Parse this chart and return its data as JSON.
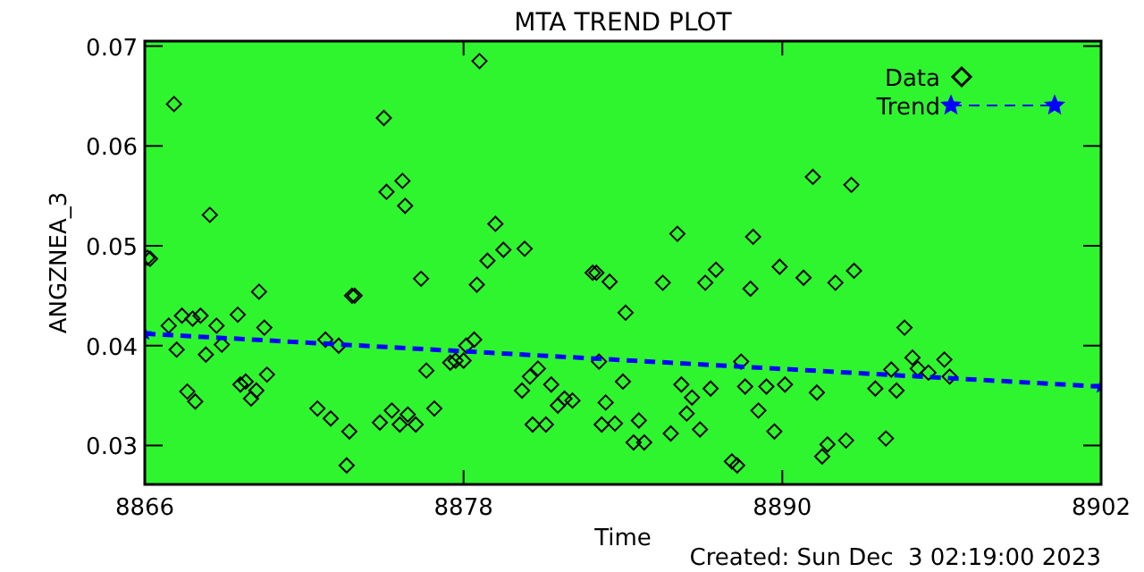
{
  "chart_data": {
    "type": "scatter",
    "title": "MTA TREND PLOT",
    "xlabel": "Time",
    "ylabel": "ANGZNEA_3",
    "annotations": [
      "Created: Sun Dec  3 02:19:00 2023"
    ],
    "xlim": [
      8866,
      8902
    ],
    "xticks": [
      8866,
      8878,
      8890,
      8902
    ],
    "ylim": [
      0.0261,
      0.0705
    ],
    "yticks": [
      0.03,
      0.04,
      0.05,
      0.06,
      0.07
    ],
    "grid": false,
    "legend": "top right",
    "series": [
      {
        "name": "Data",
        "marker": "diamond",
        "color": "#000000",
        "x": [
          8867.1,
          8875.0,
          8868.45,
          8875.1,
          8875.7,
          8875.8,
          8866.1,
          8866.2,
          8876.4,
          8878.5,
          8870.3,
          8873.8,
          8873.9,
          8866.9,
          8867.4,
          8867.8,
          8868.1,
          8868.7,
          8869.5,
          8870.5,
          8867.2,
          8868.3,
          8868.9,
          8872.8,
          8873.3,
          8878.4,
          8878.1,
          8877.7,
          8878.0,
          8877.5,
          8876.6,
          8870.6,
          8869.6,
          8869.8,
          8870.2,
          8870.0,
          8867.6,
          8867.9,
          8872.5,
          8873.0,
          8873.7,
          8873.6,
          8874.85,
          8875.3,
          8875.6,
          8875.9,
          8876.2,
          8876.9,
          8878.6,
          8879.2,
          8878.9,
          8879.5,
          8880.3,
          8882.86,
          8883.0,
          8883.5,
          8884.1,
          8886.05,
          8885.5,
          8887.1,
          8887.5,
          8888.9,
          8888.8,
          8889.9,
          8890.8,
          8883.1,
          8884.0,
          8880.8,
          8880.5,
          8881.3,
          8880.2,
          8881.8,
          8882.1,
          8881.55,
          8883.35,
          8880.6,
          8881.1,
          8883.2,
          8883.7,
          8884.6,
          8884.4,
          8884.8,
          8885.8,
          8886.2,
          8886.6,
          8886.4,
          8886.9,
          8887.3,
          8888.45,
          8888.6,
          8889.4,
          8890.1,
          8889.1,
          8889.7,
          8888.1,
          8888.3,
          8891.15,
          8892.6,
          8892.0,
          8892.7,
          8894.6,
          8894.9,
          8896.1,
          8895.1,
          8895.5,
          8896.3,
          8894.1,
          8893.5,
          8894.3,
          8891.3,
          8891.7,
          8891.5,
          8892.4,
          8893.9
        ],
        "values": [
          0.0642,
          0.0628,
          0.0531,
          0.0554,
          0.0565,
          0.054,
          0.0488,
          0.0487,
          0.0467,
          0.0461,
          0.0454,
          0.045,
          0.045,
          0.042,
          0.043,
          0.0427,
          0.043,
          0.042,
          0.0431,
          0.0418,
          0.0396,
          0.0391,
          0.0401,
          0.0406,
          0.04,
          0.0406,
          0.04,
          0.0385,
          0.0385,
          0.0383,
          0.0375,
          0.0371,
          0.0361,
          0.0364,
          0.0355,
          0.0347,
          0.0354,
          0.0344,
          0.0337,
          0.0327,
          0.0314,
          0.028,
          0.0323,
          0.0335,
          0.0321,
          0.0331,
          0.0321,
          0.0337,
          0.0685,
          0.0522,
          0.0485,
          0.0496,
          0.0497,
          0.0473,
          0.0473,
          0.0464,
          0.0433,
          0.0512,
          0.0463,
          0.0463,
          0.0476,
          0.0509,
          0.0457,
          0.0479,
          0.0468,
          0.0384,
          0.0364,
          0.0377,
          0.0369,
          0.0361,
          0.0355,
          0.0347,
          0.0345,
          0.034,
          0.0343,
          0.0321,
          0.0321,
          0.0321,
          0.0322,
          0.0325,
          0.0303,
          0.0303,
          0.0312,
          0.0361,
          0.0348,
          0.0332,
          0.0316,
          0.0357,
          0.0384,
          0.0359,
          0.0359,
          0.0361,
          0.0335,
          0.0314,
          0.0284,
          0.028,
          0.0569,
          0.0561,
          0.0463,
          0.0475,
          0.0418,
          0.0388,
          0.0386,
          0.0377,
          0.0373,
          0.0369,
          0.0376,
          0.0357,
          0.0355,
          0.0353,
          0.0301,
          0.0289,
          0.0305,
          0.0307
        ]
      },
      {
        "name": "Trend",
        "type": "line",
        "line_style": "dashed",
        "marker": "star",
        "color": "#0000ff",
        "x": [
          8866,
          8902
        ],
        "values": [
          0.0412,
          0.0359
        ]
      }
    ]
  }
}
